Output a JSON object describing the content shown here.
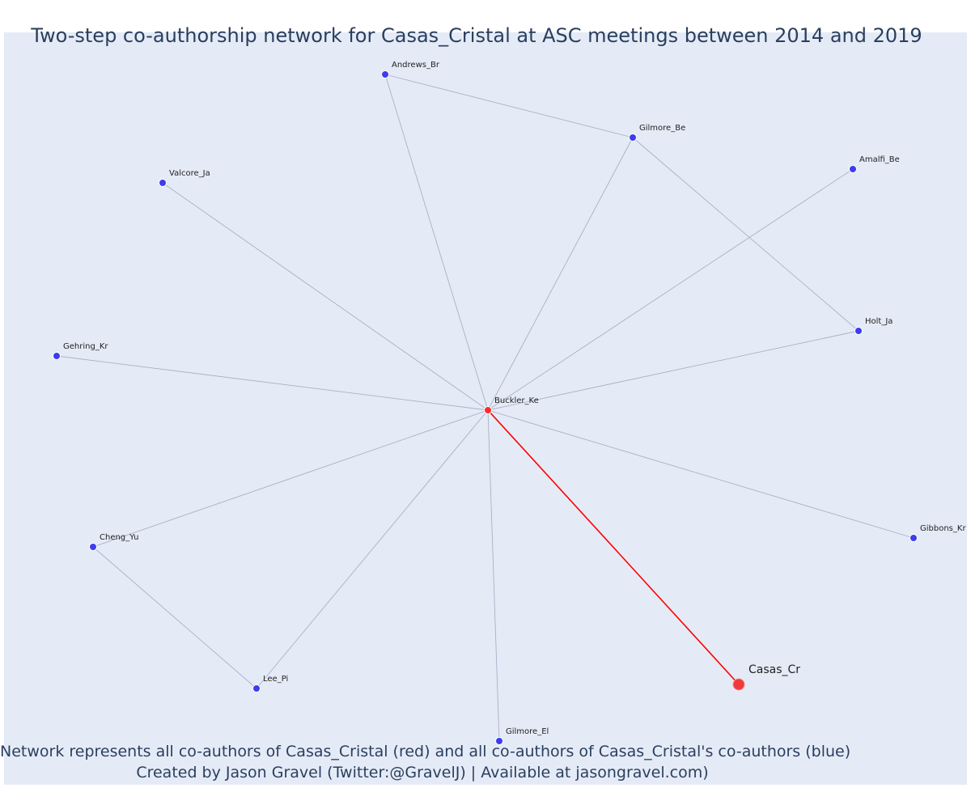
{
  "title": "Two-step co-authorship network for Casas_Cristal at ASC meetings between 2014 and 2019",
  "caption": {
    "line1": "Network represents all co-authors of Casas_Cristal (red) and all co-authors of Casas_Cristal's co-authors (blue)",
    "line2": "Created by Jason Gravel (Twitter:@GravelJ) | Available at jasongravel.com)"
  },
  "colors": {
    "background": "#e5ebf6",
    "focal_node": "#ef3b3b",
    "coauthor_node": "#ff2a2a",
    "second_step_node": "#3c3cf0",
    "focal_edge": "#ff0000",
    "edge": "#aab0c8"
  },
  "network": {
    "nodes": [
      {
        "id": "Casas_Cr",
        "label": "Casas_Cr",
        "role": "focal"
      },
      {
        "id": "Buckler_Ke",
        "label": "Buckler_Ke",
        "role": "coauthor"
      },
      {
        "id": "Andrews_Br",
        "label": "Andrews_Br",
        "role": "second_step"
      },
      {
        "id": "Gilmore_Be",
        "label": "Gilmore_Be",
        "role": "second_step"
      },
      {
        "id": "Valcore_Ja",
        "label": "Valcore_Ja",
        "role": "second_step"
      },
      {
        "id": "Amalfi_Be",
        "label": "Amalfi_Be",
        "role": "second_step"
      },
      {
        "id": "Holt_Ja",
        "label": "Holt_Ja",
        "role": "second_step"
      },
      {
        "id": "Gehring_Kr",
        "label": "Gehring_Kr",
        "role": "second_step"
      },
      {
        "id": "Cheng_Yu",
        "label": "Cheng_Yu",
        "role": "second_step"
      },
      {
        "id": "Gibbons_Kr",
        "label": "Gibbons_Kr",
        "role": "second_step"
      },
      {
        "id": "Lee_Pi",
        "label": "Lee_Pi",
        "role": "second_step"
      },
      {
        "id": "Gilmore_El",
        "label": "Gilmore_El",
        "role": "second_step"
      }
    ],
    "edges": [
      {
        "source": "Buckler_Ke",
        "target": "Casas_Cr",
        "focal": true
      },
      {
        "source": "Buckler_Ke",
        "target": "Andrews_Br"
      },
      {
        "source": "Buckler_Ke",
        "target": "Gilmore_Be"
      },
      {
        "source": "Buckler_Ke",
        "target": "Valcore_Ja"
      },
      {
        "source": "Buckler_Ke",
        "target": "Amalfi_Be"
      },
      {
        "source": "Buckler_Ke",
        "target": "Holt_Ja"
      },
      {
        "source": "Buckler_Ke",
        "target": "Gehring_Kr"
      },
      {
        "source": "Buckler_Ke",
        "target": "Cheng_Yu"
      },
      {
        "source": "Buckler_Ke",
        "target": "Gibbons_Kr"
      },
      {
        "source": "Buckler_Ke",
        "target": "Lee_Pi"
      },
      {
        "source": "Buckler_Ke",
        "target": "Gilmore_El"
      },
      {
        "source": "Andrews_Br",
        "target": "Gilmore_Be"
      },
      {
        "source": "Gilmore_Be",
        "target": "Holt_Ja"
      },
      {
        "source": "Cheng_Yu",
        "target": "Lee_Pi"
      }
    ]
  }
}
